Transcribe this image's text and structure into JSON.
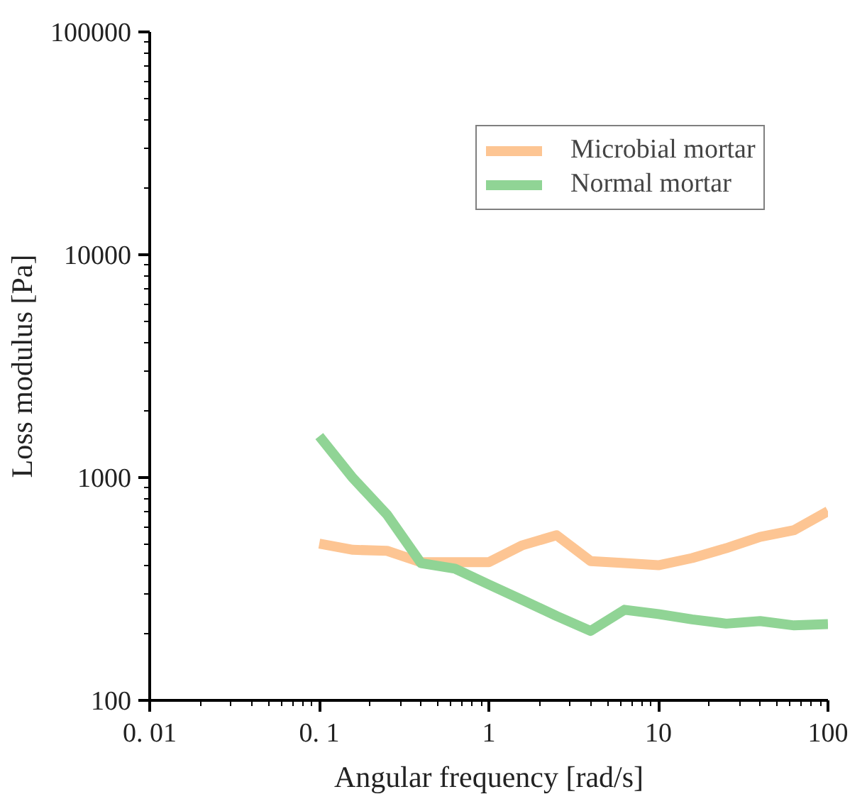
{
  "chart_data": {
    "type": "line",
    "xlabel": "Angular frequency [rad/s]",
    "ylabel": "Loss modulus [Pa]",
    "log": "xy",
    "grid": false,
    "legend": "top right",
    "x": [
      0.1,
      0.158,
      0.251,
      0.398,
      0.631,
      1,
      1.58,
      2.51,
      3.98,
      6.31,
      10,
      15.8,
      25.1,
      39.8,
      63.1,
      100
    ],
    "xlim": [
      0.01,
      100
    ],
    "xticks": [
      {
        "value": 0.01,
        "label": "0. 01"
      },
      {
        "value": 0.1,
        "label": "0. 1"
      },
      1,
      10,
      100
    ],
    "ylim": [
      100,
      100000
    ],
    "yticks": [
      100,
      1000,
      10000,
      100000
    ],
    "series": [
      {
        "name": "Microbial mortar",
        "color": "#fdc593",
        "values": [
          505,
          474,
          469,
          417,
          417,
          417,
          497,
          551,
          422,
          413,
          404,
          435,
          482,
          542,
          581,
          706
        ]
      },
      {
        "name": "Normal mortar",
        "color": "#90d495",
        "values": [
          1535,
          994,
          682,
          413,
          390,
          331,
          282,
          239,
          205,
          255,
          244,
          231,
          221,
          227,
          217,
          220
        ]
      }
    ]
  }
}
